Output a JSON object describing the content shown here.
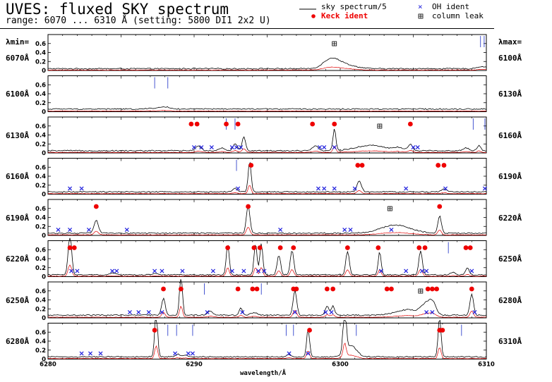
{
  "chart_data": {
    "type": "line",
    "title": "UVES: fluxed SKY spectrum",
    "subtitle": "range: 6070 ... 6310 Å (setting: 5800 DI1 2x2 U)",
    "xlabel": "wavelength/Å",
    "lambda_min_label": "λmin=",
    "lambda_max_label": "λmax=",
    "legend": {
      "sky": "sky spectrum/5",
      "keck": "Keck ident",
      "oh": "OH ident",
      "leak": "column leak"
    },
    "colors": {
      "sky": "#000000",
      "fluxed": "#e00000",
      "keck": "#ee0000",
      "oh": "#2222dd",
      "line_marker": "#3344cc",
      "leak": "#000000"
    },
    "panels": [
      {
        "xmin": 6070,
        "xmax": 6100,
        "min_label": "6070Å",
        "max_label": "6100Å",
        "ylim": [
          0,
          0.8
        ],
        "yticks": [
          "0",
          "0.2",
          "0.4",
          "0.6"
        ],
        "baseline": 0.04,
        "peaks": [
          {
            "x": 6089.3,
            "h": 0.17,
            "w": 0.5
          },
          {
            "x": 6089.9,
            "h": 0.1,
            "w": 0.6
          },
          {
            "x": 6090.8,
            "h": 0.04,
            "w": 0.6
          },
          {
            "x": 6099.7,
            "h": 0.05,
            "w": 0.3
          }
        ],
        "keck": [],
        "oh": [],
        "markers": [
          6099.6,
          6099.85
        ],
        "leaks": [
          6089.6
        ]
      },
      {
        "xmin": 6100,
        "xmax": 6130,
        "min_label": "6100Å",
        "max_label": "6130Å",
        "ylim": [
          0,
          0.8
        ],
        "yticks": [
          "0",
          "0.2",
          "0.4",
          "0.6"
        ],
        "baseline": 0.06,
        "peaks": [
          {
            "x": 6107.2,
            "h": 0.02,
            "w": 0.3
          },
          {
            "x": 6108.0,
            "h": 0.05,
            "w": 0.3
          }
        ],
        "keck": [],
        "oh": [],
        "markers": [
          6107.3,
          6108.2
        ],
        "leaks": []
      },
      {
        "xmin": 6130,
        "xmax": 6160,
        "min_label": "6130Å",
        "max_label": "6160Å",
        "ylim": [
          0,
          0.8
        ],
        "yticks": [
          "0",
          "0.2",
          "0.4",
          "0.6"
        ],
        "baseline": 0.05,
        "peaks": [
          {
            "x": 6140.3,
            "h": 0.1,
            "w": 0.2
          },
          {
            "x": 6141.9,
            "h": 0.06,
            "w": 0.2
          },
          {
            "x": 6142.8,
            "h": 0.15,
            "w": 0.15
          },
          {
            "x": 6143.4,
            "h": 0.3,
            "w": 0.12
          },
          {
            "x": 6148.3,
            "h": 0.1,
            "w": 0.2
          },
          {
            "x": 6149.6,
            "h": 0.48,
            "w": 0.1
          },
          {
            "x": 6152.1,
            "h": 0.12,
            "w": 1.0
          },
          {
            "x": 6154.0,
            "h": 0.06,
            "w": 0.3
          },
          {
            "x": 6154.8,
            "h": 0.14,
            "w": 0.15
          },
          {
            "x": 6158.6,
            "h": 0.06,
            "w": 0.2
          },
          {
            "x": 6159.5,
            "h": 0.12,
            "w": 0.12
          }
        ],
        "keck": [
          6139.8,
          6140.2,
          6142.2,
          6143.0,
          6148.1,
          6149.6,
          6154.8
        ],
        "oh": [
          6140.0,
          6140.5,
          6141.2,
          6142.6,
          6142.9,
          6143.2,
          6148.6,
          6148.9,
          6149.6,
          6155.0,
          6155.3
        ],
        "markers": [
          6142.2,
          6142.8,
          6159.1,
          6159.9,
          6161.1
        ],
        "leaks": [
          6152.7
        ]
      },
      {
        "xmin": 6160,
        "xmax": 6190,
        "min_label": "6160Å",
        "max_label": "6190Å",
        "ylim": [
          0,
          0.8
        ],
        "yticks": [
          "0",
          "0.2",
          "0.4",
          "0.6"
        ],
        "baseline": 0.05,
        "peaks": [
          {
            "x": 6172.8,
            "h": 0.08,
            "w": 0.15
          },
          {
            "x": 6173.8,
            "h": 0.68,
            "w": 0.1
          },
          {
            "x": 6181.3,
            "h": 0.25,
            "w": 0.15
          },
          {
            "x": 6187.1,
            "h": 0.06,
            "w": 0.2
          }
        ],
        "keck": [
          6173.9,
          6181.2,
          6181.5,
          6186.7,
          6187.1
        ],
        "oh": [
          6161.5,
          6162.3,
          6173.0,
          6178.5,
          6178.9,
          6179.6,
          6181.0,
          6184.5,
          6187.2,
          6189.9
        ],
        "markers": [
          6172.9
        ],
        "leaks": []
      },
      {
        "xmin": 6190,
        "xmax": 6220,
        "min_label": "6190Å",
        "max_label": "6220Å",
        "ylim": [
          0,
          0.8
        ],
        "yticks": [
          "0",
          "0.2",
          "0.4",
          "0.6"
        ],
        "baseline": 0.05,
        "peaks": [
          {
            "x": 6193.3,
            "h": 0.28,
            "w": 0.15
          },
          {
            "x": 6203.7,
            "h": 0.62,
            "w": 0.12
          },
          {
            "x": 6213.8,
            "h": 0.18,
            "w": 1.0
          },
          {
            "x": 6216.8,
            "h": 0.38,
            "w": 0.12
          }
        ],
        "keck": [
          6193.3,
          6203.7,
          6216.8
        ],
        "oh": [
          6190.7,
          6191.5,
          6192.8,
          6195.4,
          6205.9,
          6210.3,
          6210.7,
          6213.5
        ],
        "markers": [],
        "leaks": [
          6213.4
        ]
      },
      {
        "xmin": 6220,
        "xmax": 6250,
        "min_label": "6220Å",
        "max_label": "6250Å",
        "ylim": [
          0,
          0.8
        ],
        "yticks": [
          "0",
          "0.2",
          "0.4",
          "0.6"
        ],
        "baseline": 0.04,
        "peaks": [
          {
            "x": 6221.5,
            "h": 0.9,
            "w": 0.12
          },
          {
            "x": 6224.5,
            "h": 0.04,
            "w": 0.2
          },
          {
            "x": 6227.4,
            "h": 0.03,
            "w": 0.2
          },
          {
            "x": 6232.3,
            "h": 0.7,
            "w": 0.1
          },
          {
            "x": 6234.2,
            "h": 0.7,
            "w": 0.1
          },
          {
            "x": 6234.6,
            "h": 0.7,
            "w": 0.1
          },
          {
            "x": 6235.8,
            "h": 0.44,
            "w": 0.12
          },
          {
            "x": 6236.7,
            "h": 0.54,
            "w": 0.12
          },
          {
            "x": 6240.5,
            "h": 0.52,
            "w": 0.12
          },
          {
            "x": 6242.7,
            "h": 0.52,
            "w": 0.1
          },
          {
            "x": 6245.5,
            "h": 0.54,
            "w": 0.12
          },
          {
            "x": 6247.7,
            "h": 0.06,
            "w": 0.15
          },
          {
            "x": 6248.7,
            "h": 0.15,
            "w": 0.12
          }
        ],
        "keck": [
          6221.5,
          6221.8,
          6232.3,
          6234.1,
          6234.5,
          6235.9,
          6236.8,
          6240.5,
          6242.6,
          6245.4,
          6245.8,
          6248.6,
          6248.9
        ],
        "oh": [
          6221.6,
          6222.0,
          6224.4,
          6224.7,
          6227.3,
          6227.8,
          6229.2,
          6231.3,
          6232.6,
          6233.4,
          6234.4,
          6234.8,
          6242.8,
          6244.5,
          6245.6,
          6245.9,
          6249.0
        ],
        "markers": [
          6247.4
        ],
        "leaks": []
      },
      {
        "xmin": 6250,
        "xmax": 6280,
        "min_label": "6250Å",
        "max_label": "6280Å",
        "ylim": [
          0,
          0.8
        ],
        "yticks": [
          "0",
          "0.2",
          "0.4",
          "0.6"
        ],
        "baseline": 0.06,
        "peaks": [
          {
            "x": 6257.9,
            "h": 0.38,
            "w": 0.12
          },
          {
            "x": 6259.1,
            "h": 0.88,
            "w": 0.1
          },
          {
            "x": 6261.1,
            "h": 0.08,
            "w": 0.2
          },
          {
            "x": 6263.2,
            "h": 0.16,
            "w": 0.12
          },
          {
            "x": 6264.1,
            "h": 0.06,
            "w": 0.2
          },
          {
            "x": 6266.9,
            "h": 0.55,
            "w": 0.12
          },
          {
            "x": 6269.1,
            "h": 0.2,
            "w": 0.12
          },
          {
            "x": 6269.5,
            "h": 0.2,
            "w": 0.12
          },
          {
            "x": 6274.6,
            "h": 0.12,
            "w": 0.8
          },
          {
            "x": 6275.8,
            "h": 0.2,
            "w": 0.3
          },
          {
            "x": 6276.3,
            "h": 0.28,
            "w": 0.25
          },
          {
            "x": 6279.0,
            "h": 0.48,
            "w": 0.12
          }
        ],
        "keck": [
          6257.9,
          6259.1,
          6263.0,
          6264.0,
          6264.3,
          6266.8,
          6267.0,
          6269.1,
          6269.5,
          6273.2,
          6273.5,
          6276.0,
          6276.3,
          6276.6,
          6279.0
        ],
        "oh": [
          6255.6,
          6256.2,
          6256.9,
          6257.8,
          6260.9,
          6263.3,
          6266.9,
          6269.0,
          6269.4,
          6275.9,
          6276.3,
          6279.2
        ],
        "markers": [
          6260.7,
          6264.6
        ],
        "leaks": [
          6275.5
        ]
      },
      {
        "xmin": 6280,
        "xmax": 6310,
        "min_label": "6280Å",
        "max_label": "6310Å",
        "ylim": [
          0,
          0.8
        ],
        "yticks": [
          "0",
          "0.2",
          "0.4",
          "0.6"
        ],
        "baseline": 0.05,
        "peaks": [
          {
            "x": 6287.4,
            "h": 1.0,
            "w": 0.1
          },
          {
            "x": 6288.9,
            "h": 0.06,
            "w": 0.15
          },
          {
            "x": 6289.4,
            "h": 0.04,
            "w": 0.15
          },
          {
            "x": 6296.5,
            "h": 0.05,
            "w": 0.15
          },
          {
            "x": 6297.8,
            "h": 0.62,
            "w": 0.1
          },
          {
            "x": 6300.3,
            "h": 1.1,
            "w": 0.1
          },
          {
            "x": 6300.7,
            "h": 0.26,
            "w": 0.4
          },
          {
            "x": 6306.8,
            "h": 0.9,
            "w": 0.1
          }
        ],
        "keck": [
          6287.3,
          6297.9,
          6306.8,
          6307.0
        ],
        "oh": [
          6282.3,
          6282.9,
          6283.6,
          6288.7,
          6289.6,
          6289.9,
          6296.5,
          6297.8
        ],
        "markers": [
          6288.2,
          6288.8,
          6289.9,
          6296.3,
          6296.8,
          6301.1,
          6308.3
        ],
        "leaks": []
      }
    ],
    "xticks": [
      6280,
      6290,
      6300,
      6310
    ]
  }
}
